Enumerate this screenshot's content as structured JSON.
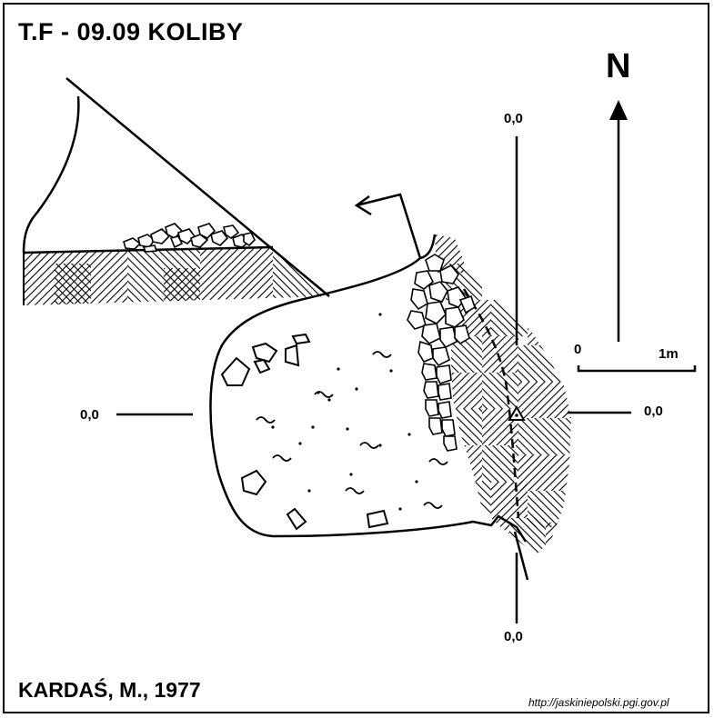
{
  "title": "T.F - 09.09  KOLIBY",
  "north_label": "N",
  "scale": {
    "start_label": "0",
    "end_label": "1m"
  },
  "datum_labels": {
    "top": "0,0",
    "bottom": "0,0",
    "left": "0,0",
    "right": "0,0"
  },
  "author": "KARDAŚ, M., 1977",
  "source_url": "http://jaskiniepolski.pgi.gov.pl",
  "colors": {
    "ink": "#000000",
    "paper": "#ffffff"
  }
}
